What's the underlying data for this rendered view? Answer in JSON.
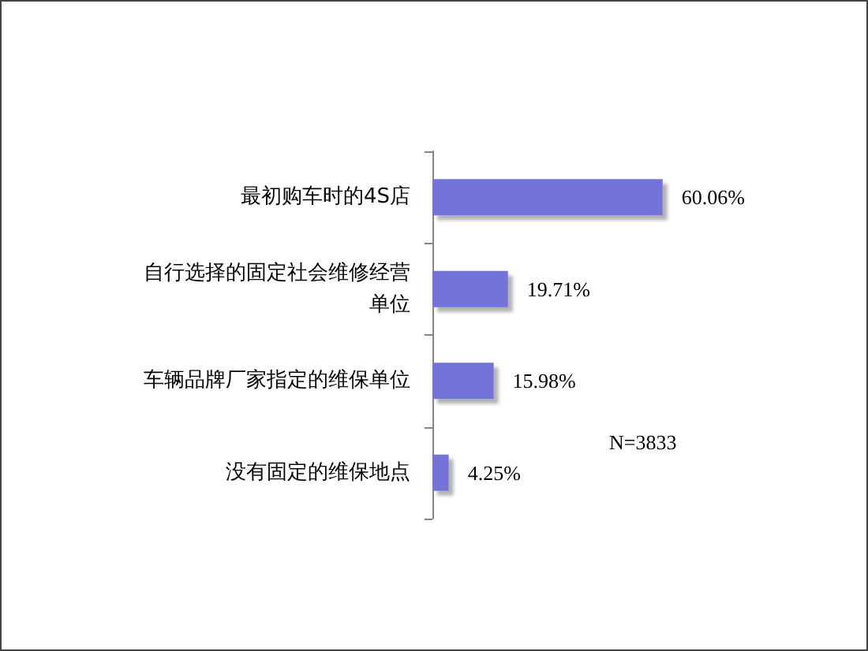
{
  "chart_data": {
    "type": "bar",
    "orientation": "horizontal",
    "categories": [
      "最初购车时的4S店",
      "自行选择的固定社会维修经营单位",
      "车辆品牌厂家指定的维保单位",
      "没有固定的维保地点"
    ],
    "values": [
      60.06,
      19.71,
      15.98,
      4.25
    ],
    "value_labels": [
      "60.06%",
      "19.71%",
      "15.98%",
      "4.25%"
    ],
    "color": "#7373d8",
    "tick_labels": "y",
    "annotations": [
      "N=3833"
    ]
  }
}
